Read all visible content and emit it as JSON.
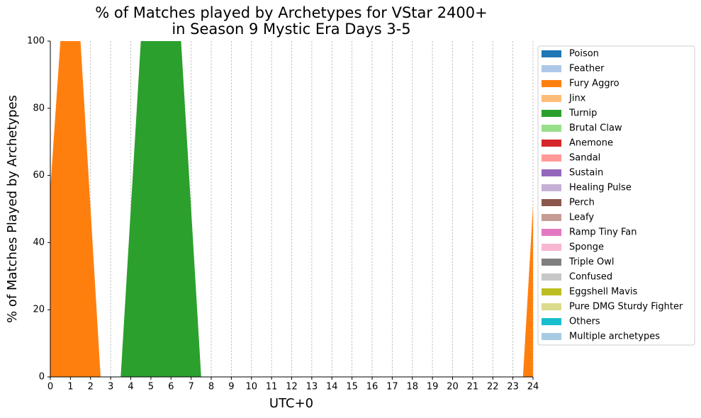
{
  "chart_data": {
    "type": "stacked_area",
    "title": [
      "% of Matches played by Archetypes for VStar 2400+",
      "in Season 9 Mystic Era Days 3-5"
    ],
    "x_label": "UTC+0",
    "y_label": "% of Matches Played by Archetypes",
    "x": [
      0,
      0.5,
      1.5,
      2.5,
      3.5,
      4.5,
      5.5,
      6.5,
      7.5,
      8.5,
      9.5,
      10.5,
      11.5,
      12.5,
      13.5,
      14.5,
      15.5,
      16.5,
      17.5,
      18.5,
      19.5,
      20.5,
      21.5,
      22.5,
      23.5,
      24
    ],
    "xlim": [
      0,
      24
    ],
    "xticks": [
      0,
      1,
      2,
      3,
      4,
      5,
      6,
      7,
      8,
      9,
      10,
      11,
      12,
      13,
      14,
      15,
      16,
      17,
      18,
      19,
      20,
      21,
      22,
      23,
      24
    ],
    "ylim": [
      0,
      100
    ],
    "yticks": [
      0,
      20,
      40,
      60,
      80,
      100
    ],
    "grid": "x",
    "legend": "outside-right",
    "series": [
      {
        "name": "Poison",
        "color": "#1f77b4",
        "values": [
          0,
          0,
          0,
          0,
          0,
          0,
          0,
          0,
          0,
          0,
          0,
          0,
          0,
          0,
          0,
          0,
          0,
          0,
          0,
          0,
          0,
          0,
          0,
          0,
          0,
          0
        ]
      },
      {
        "name": "Feather",
        "color": "#aec7e8",
        "values": [
          0,
          0,
          0,
          0,
          0,
          0,
          0,
          0,
          0,
          0,
          0,
          0,
          0,
          0,
          0,
          0,
          0,
          0,
          0,
          0,
          0,
          0,
          0,
          0,
          0,
          0
        ]
      },
      {
        "name": "Fury Aggro",
        "color": "#ff7f0e",
        "values": [
          56,
          100,
          100,
          0,
          0,
          0,
          0,
          0,
          0,
          0,
          0,
          0,
          0,
          0,
          0,
          0,
          0,
          0,
          0,
          0,
          0,
          0,
          0,
          0,
          0,
          51
        ]
      },
      {
        "name": "Jinx",
        "color": "#ffbb78",
        "values": [
          0,
          0,
          0,
          0,
          0,
          0,
          0,
          0,
          0,
          0,
          0,
          0,
          0,
          0,
          0,
          0,
          0,
          0,
          0,
          0,
          0,
          0,
          0,
          0,
          0,
          0
        ]
      },
      {
        "name": "Turnip",
        "color": "#2ca02c",
        "values": [
          0,
          0,
          0,
          0,
          0,
          100,
          100,
          100,
          0,
          0,
          0,
          0,
          0,
          0,
          0,
          0,
          0,
          0,
          0,
          0,
          0,
          0,
          0,
          0,
          0,
          0
        ]
      },
      {
        "name": "Brutal Claw",
        "color": "#98df8a",
        "values": [
          0,
          0,
          0,
          0,
          0,
          0,
          0,
          0,
          0,
          0,
          0,
          0,
          0,
          0,
          0,
          0,
          0,
          0,
          0,
          0,
          0,
          0,
          0,
          0,
          0,
          0
        ]
      },
      {
        "name": "Anemone",
        "color": "#d62728",
        "values": [
          0,
          0,
          0,
          0,
          0,
          0,
          0,
          0,
          0,
          0,
          0,
          0,
          0,
          0,
          0,
          0,
          0,
          0,
          0,
          0,
          0,
          0,
          0,
          0,
          0,
          0
        ]
      },
      {
        "name": "Sandal",
        "color": "#ff9896",
        "values": [
          0,
          0,
          0,
          0,
          0,
          0,
          0,
          0,
          0,
          0,
          0,
          0,
          0,
          0,
          0,
          0,
          0,
          0,
          0,
          0,
          0,
          0,
          0,
          0,
          0,
          0
        ]
      },
      {
        "name": "Sustain",
        "color": "#9467bd",
        "values": [
          0,
          0,
          0,
          0,
          0,
          0,
          0,
          0,
          0,
          0,
          0,
          0,
          0,
          0,
          0,
          0,
          0,
          0,
          0,
          0,
          0,
          0,
          0,
          0,
          0,
          0
        ]
      },
      {
        "name": "Healing Pulse",
        "color": "#c5b0d5",
        "values": [
          0,
          0,
          0,
          0,
          0,
          0,
          0,
          0,
          0,
          0,
          0,
          0,
          0,
          0,
          0,
          0,
          0,
          0,
          0,
          0,
          0,
          0,
          0,
          0,
          0,
          0
        ]
      },
      {
        "name": "Perch",
        "color": "#8c564b",
        "values": [
          0,
          0,
          0,
          0,
          0,
          0,
          0,
          0,
          0,
          0,
          0,
          0,
          0,
          0,
          0,
          0,
          0,
          0,
          0,
          0,
          0,
          0,
          0,
          0,
          0,
          0
        ]
      },
      {
        "name": "Leafy",
        "color": "#c49c94",
        "values": [
          0,
          0,
          0,
          0,
          0,
          0,
          0,
          0,
          0,
          0,
          0,
          0,
          0,
          0,
          0,
          0,
          0,
          0,
          0,
          0,
          0,
          0,
          0,
          0,
          0,
          0
        ]
      },
      {
        "name": "Ramp Tiny Fan",
        "color": "#e377c2",
        "values": [
          0,
          0,
          0,
          0,
          0,
          0,
          0,
          0,
          0,
          0,
          0,
          0,
          0,
          0,
          0,
          0,
          0,
          0,
          0,
          0,
          0,
          0,
          0,
          0,
          0,
          0
        ]
      },
      {
        "name": "Sponge",
        "color": "#f7b6d2",
        "values": [
          0,
          0,
          0,
          0,
          0,
          0,
          0,
          0,
          0,
          0,
          0,
          0,
          0,
          0,
          0,
          0,
          0,
          0,
          0,
          0,
          0,
          0,
          0,
          0,
          0,
          0
        ]
      },
      {
        "name": "Triple Owl",
        "color": "#7f7f7f",
        "values": [
          0,
          0,
          0,
          0,
          0,
          0,
          0,
          0,
          0,
          0,
          0,
          0,
          0,
          0,
          0,
          0,
          0,
          0,
          0,
          0,
          0,
          0,
          0,
          0,
          0,
          0
        ]
      },
      {
        "name": "Confused",
        "color": "#c7c7c7",
        "values": [
          0,
          0,
          0,
          0,
          0,
          0,
          0,
          0,
          0,
          0,
          0,
          0,
          0,
          0,
          0,
          0,
          0,
          0,
          0,
          0,
          0,
          0,
          0,
          0,
          0,
          0
        ]
      },
      {
        "name": "Eggshell Mavis",
        "color": "#bcbd22",
        "values": [
          0,
          0,
          0,
          0,
          0,
          0,
          0,
          0,
          0,
          0,
          0,
          0,
          0,
          0,
          0,
          0,
          0,
          0,
          0,
          0,
          0,
          0,
          0,
          0,
          0,
          0
        ]
      },
      {
        "name": "Pure DMG Sturdy Fighter",
        "color": "#dbdb8d",
        "values": [
          0,
          0,
          0,
          0,
          0,
          0,
          0,
          0,
          0,
          0,
          0,
          0,
          0,
          0,
          0,
          0,
          0,
          0,
          0,
          0,
          0,
          0,
          0,
          0,
          0,
          0
        ]
      },
      {
        "name": "Others",
        "color": "#17becf",
        "values": [
          0,
          0,
          0,
          0,
          0,
          0,
          0,
          0,
          0,
          0,
          0,
          0,
          0,
          0,
          0,
          0,
          0,
          0,
          0,
          0,
          0,
          0,
          0,
          0,
          0,
          0
        ]
      },
      {
        "name": "Multiple archetypes",
        "color": "#a6cbe3",
        "values": [
          0,
          0,
          0,
          0,
          0,
          0,
          0,
          0,
          0,
          0,
          0,
          0,
          0,
          0,
          0,
          0,
          0,
          0,
          0,
          0,
          0,
          0,
          0,
          0,
          0,
          0
        ]
      }
    ]
  }
}
